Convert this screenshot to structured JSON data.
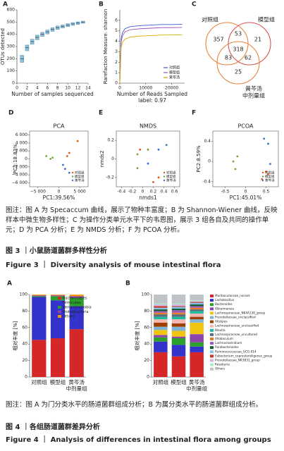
{
  "figure3": {
    "panels": [
      {
        "letter": "A",
        "type": "box",
        "xlabel": "Number of samples sequenced",
        "ylabel": "OTUs detected",
        "color": "#8fbfd9",
        "x": [
          1,
          2,
          3,
          4,
          5,
          6,
          7,
          8,
          9,
          10,
          11,
          12,
          13
        ],
        "q1": [
          170,
          265,
          318,
          355,
          382,
          403,
          424,
          440,
          451,
          462,
          473,
          481,
          490
        ],
        "median": [
          200,
          290,
          340,
          375,
          400,
          420,
          440,
          455,
          465,
          475,
          485,
          492,
          500
        ],
        "q3": [
          228,
          312,
          360,
          393,
          416,
          435,
          454,
          468,
          477,
          487,
          496,
          502,
          508
        ],
        "xlim": [
          0,
          14
        ],
        "xticks": [
          0,
          2,
          4,
          6,
          8,
          10,
          12,
          14
        ],
        "ylim": [
          0,
          600
        ],
        "yticks": [
          0,
          100,
          200,
          300,
          400,
          500,
          600
        ]
      },
      {
        "letter": "B",
        "type": "line",
        "xlabel": "Number of Reads Sampled",
        "ylabel": "Rarefaction Measure: shannon",
        "subtitle": "label: 0.97",
        "x": [
          0,
          500,
          1000,
          2000,
          4000,
          8000,
          12000,
          16000,
          20000,
          24000
        ],
        "series": [
          {
            "name": "对照组",
            "color": "#3b5bdb",
            "values": [
              0,
              4.2,
              4.8,
              5.2,
              5.4,
              5.5,
              5.55,
              5.6,
              5.6,
              5.62
            ]
          },
          {
            "name": "模型组",
            "color": "#9b59b6",
            "values": [
              0,
              3.9,
              4.5,
              4.9,
              5.1,
              5.2,
              5.25,
              5.3,
              5.3,
              5.32
            ]
          },
          {
            "name": "黄芩汤",
            "color": "#e0a800",
            "values": [
              0,
              3.4,
              3.9,
              4.2,
              4.4,
              4.5,
              4.55,
              4.6,
              4.6,
              4.62
            ]
          }
        ],
        "xlim": [
          0,
          25000
        ],
        "xticks": [
          0,
          10000,
          20000
        ],
        "ylim": [
          0,
          7
        ],
        "yticks": [
          0,
          1,
          2,
          3,
          4,
          5,
          6
        ]
      },
      {
        "letter": "C",
        "type": "venn",
        "sets": [
          [
            "对照组"
          ],
          [
            "模型组"
          ],
          [
            "黄芩汤",
            "中剂量组"
          ]
        ],
        "regions": {
          "a": 357,
          "ab": 53,
          "b": 21,
          "abc": 318,
          "ac": 83,
          "bc": 62,
          "c": 25
        }
      },
      {
        "letter": "D",
        "type": "scatter",
        "title": "PCA",
        "xlabel": "PC1:39.56%",
        "ylabel": "PC2:18.83%",
        "series": [
          {
            "name": "对照组",
            "color": "#e6550d",
            "x": [
              4500,
              2500,
              2000
            ],
            "y": [
              4500,
              1500,
              700
            ]
          },
          {
            "name": "模型组",
            "color": "#74a23a",
            "x": [
              -3000,
              -2000,
              -1500
            ],
            "y": [
              700,
              0,
              300
            ]
          },
          {
            "name": "黄芩汤",
            "color": "#3b6fd6",
            "x": [
              1000,
              1500,
              2500
            ],
            "y": [
              -1500,
              -2500,
              -3500
            ]
          }
        ],
        "xlim": [
          -7000,
          7000
        ],
        "xticks": [
          {
            "value": -5000,
            "label": "−5 000"
          },
          0,
          {
            "value": 5000,
            "label": "5 000"
          }
        ],
        "ylim": [
          -7000,
          7000
        ],
        "yticks": [
          {
            "value": 6000,
            "label": "6 000"
          },
          {
            "value": 4000,
            "label": "4 000"
          },
          {
            "value": 2000,
            "label": "2 000"
          },
          0,
          {
            "value": -2000,
            "label": "−2 000"
          },
          {
            "value": -4000,
            "label": "−4 000"
          },
          {
            "value": -6000,
            "label": "−6 000"
          }
        ]
      },
      {
        "letter": "E",
        "type": "scatter",
        "title": "NMDS",
        "xlabel": "nmds1",
        "ylabel": "nmds2",
        "series": [
          {
            "name": "对照组",
            "color": "#e6550d",
            "x": [
              -0.05,
              0.2,
              0.3
            ],
            "y": [
              0.1,
              -0.25,
              -0.2
            ]
          },
          {
            "name": "模型组",
            "color": "#74a23a",
            "x": [
              -0.1,
              0.1,
              -0.1
            ],
            "y": [
              -0.1,
              0.1,
              0.05
            ]
          },
          {
            "name": "黄芩汤",
            "color": "#3b6fd6",
            "x": [
              0.45,
              0.1,
              0.3
            ],
            "y": [
              0.15,
              -0.05,
              0.1
            ]
          }
        ],
        "xlim": [
          -0.5,
          0.7
        ],
        "xticks": [
          -0.4,
          -0.2,
          0,
          0.2,
          0.4,
          0.6
        ],
        "ylim": [
          -0.3,
          0.3
        ],
        "yticks": [
          -0.2,
          0,
          0.2
        ]
      },
      {
        "letter": "F",
        "type": "scatter",
        "title": "PCOA",
        "xlabel": "PC1:45.01%",
        "ylabel": "PC2:8.59%",
        "series": [
          {
            "name": "对照组",
            "color": "#e6550d",
            "x": [
              0.5,
              0.4,
              0.55
            ],
            "y": [
              -0.2,
              -0.35,
              -0.25
            ]
          },
          {
            "name": "模型组",
            "color": "#74a23a",
            "x": [
              -0.2,
              -0.3,
              -0.25
            ],
            "y": [
              0.1,
              0,
              -0.15
            ]
          },
          {
            "name": "黄芩汤",
            "color": "#3b6fd6",
            "x": [
              0.45,
              0.55,
              0.6
            ],
            "y": [
              0.45,
              0.35,
              -0.05
            ]
          }
        ],
        "xlim": [
          -0.8,
          0.8
        ],
        "xticks": [
          -0.5,
          0,
          0.5
        ],
        "ylim": [
          -0.5,
          0.6
        ],
        "yticks": [
          -0.4,
          0,
          0.4
        ]
      }
    ],
    "note": "图注：图 A 为 Specaccum 曲线，展示了物种丰富度；B 为 Shannon-Wiener 曲线，反映样本中微生物多样性；C 为操作分类单元水平下的韦恩图，展示 3 组各自及共同的操作单元；D 为 PCA 分析；E 为 NMDS 分析；F 为 PCOA 分析。",
    "title_cn": "图 3 ｜小鼠肠道菌群多样性分析",
    "title_en": "Figure 3 ｜ Diversity analysis of mouse intestinal flora"
  },
  "figure4": {
    "panels": [
      {
        "letter": "A",
        "type": "stacked_bar",
        "ylabel": "相对丰度 [%]",
        "categories": [
          [
            "对照组"
          ],
          [
            "模型组"
          ],
          [
            "黄芩汤",
            "中剂量组"
          ]
        ],
        "ylim": [
          0,
          100
        ],
        "yticks": [
          0,
          20,
          40,
          60,
          80,
          100
        ],
        "series": [
          {
            "name": "Bacteroidetes",
            "color": "#d62728",
            "values": [
              45,
              47,
              58
            ]
          },
          {
            "name": "Firmicutes",
            "color": "#3333cc",
            "values": [
              52,
              46,
              28
            ]
          },
          {
            "name": "Verrucomicrobia",
            "color": "#2ca02c",
            "values": [
              1,
              5,
              10
            ]
          },
          {
            "name": "Proteobacteria",
            "color": "#8e44ad",
            "values": [
              1,
              1,
              2
            ]
          },
          {
            "name": "Others",
            "color": "#f39c12",
            "values": [
              1,
              1,
              2
            ]
          }
        ]
      },
      {
        "letter": "B",
        "type": "stacked_bar",
        "ylabel": "相对丰度 [%]",
        "categories": [
          [
            "对照组"
          ],
          [
            "模型组"
          ],
          [
            "黄芩汤",
            "中剂量组"
          ]
        ],
        "ylim": [
          0,
          100
        ],
        "yticks": [
          0,
          20,
          40,
          60,
          80,
          100
        ],
        "series": [
          {
            "name": "Muribaculaceae_norank",
            "color": "#d62728",
            "values": [
              30,
              25,
              30
            ]
          },
          {
            "name": "Lactobacillus",
            "color": "#3333cc",
            "values": [
              13,
              14,
              7
            ]
          },
          {
            "name": "Bacteroides",
            "color": "#2ca02c",
            "values": [
              5,
              8,
              5
            ]
          },
          {
            "name": "Akkermansia",
            "color": "#8e44ad",
            "values": [
              3,
              2,
              10
            ]
          },
          {
            "name": "Lachnospiraceae_NK4A136_group",
            "color": "#f1c40f",
            "values": [
              6,
              7,
              14
            ]
          },
          {
            "name": "Prevotellaceae_unclassified",
            "color": "#7fb3d5",
            "values": [
              4,
              5,
              4
            ]
          },
          {
            "name": "Alistipes",
            "color": "#a04000",
            "values": [
              5,
              4,
              3
            ]
          },
          {
            "name": "Lachnospiraceae_unclassified",
            "color": "#f5b7b1",
            "values": [
              4,
              5,
              4
            ]
          },
          {
            "name": "Blautia",
            "color": "#1abc9c",
            "values": [
              3,
              3,
              3
            ]
          },
          {
            "name": "Lachnospiraceae_uncultured",
            "color": "#5d6d7e",
            "values": [
              3,
              3,
              2
            ]
          },
          {
            "name": "Allobaculum",
            "color": "#e67e22",
            "values": [
              2,
              2,
              2
            ]
          },
          {
            "name": "Lachnoclostridium",
            "color": "#9b59b6",
            "values": [
              2,
              3,
              2
            ]
          },
          {
            "name": "Parabacteroides",
            "color": "#145a32",
            "values": [
              2,
              2,
              2
            ]
          },
          {
            "name": "Ruminococcaceae_UCG-014",
            "color": "#85c1e9",
            "values": [
              2,
              2,
              2
            ]
          },
          {
            "name": "Eubacterium_coprostanoligenes_group",
            "color": "#c0392b",
            "values": [
              2,
              1,
              1
            ]
          },
          {
            "name": "Prevotellaceae_NK3B31_group",
            "color": "#d2b4de",
            "values": [
              2,
              2,
              1
            ]
          },
          {
            "name": "Roseburia",
            "color": "#abebc6",
            "values": [
              1,
              1,
              1
            ]
          },
          {
            "name": "Others",
            "color": "#bdc3c7",
            "values": [
              11,
              11,
              7
            ]
          }
        ]
      }
    ],
    "note": "图注：图 A 为门分类水平的肠道菌群组成分析；B 为属分类水平的肠道菌群组成分析。",
    "title_cn": "图 4 ｜各组肠道菌群差异分析",
    "title_en": "Figure 4 ｜ Analysis of differences in intestinal flora among groups"
  }
}
